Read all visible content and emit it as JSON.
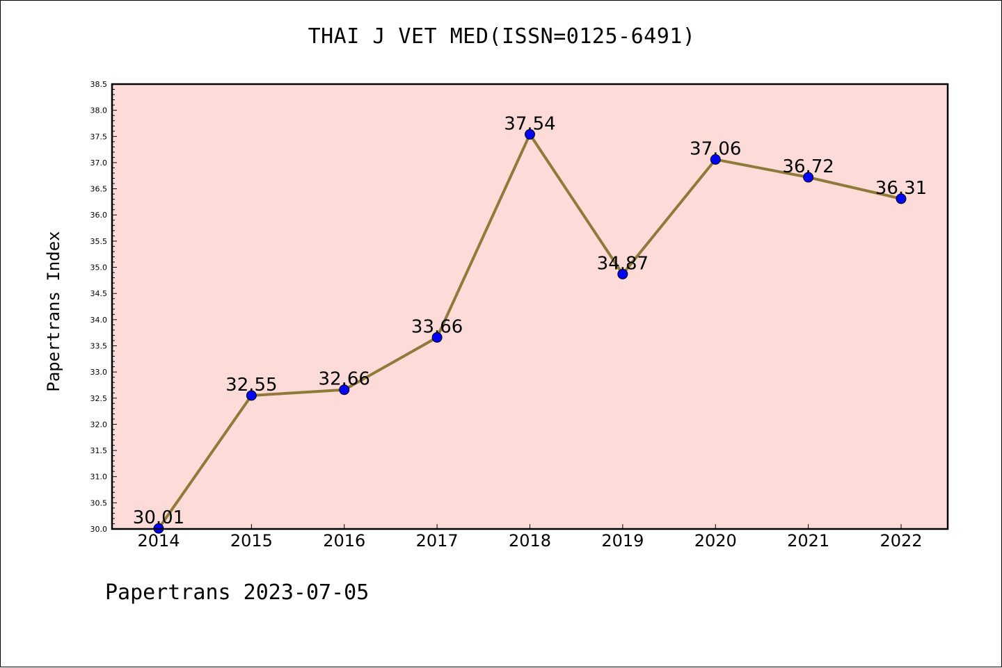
{
  "header": {
    "title": "THAI J VET MED(ISSN=0125-6491)"
  },
  "footer": {
    "text": "Papertrans 2023-07-05"
  },
  "colors": {
    "plot_background": "#fddbd8",
    "line": "#8f7a3a",
    "marker": "#0000ff",
    "axes": "#000000"
  },
  "chart_data": {
    "type": "line",
    "title": "THAI J VET MED(ISSN=0125-6491)",
    "xlabel": "",
    "ylabel": "Papertrans Index",
    "categories": [
      "2014",
      "2015",
      "2016",
      "2017",
      "2018",
      "2019",
      "2020",
      "2021",
      "2022"
    ],
    "series": [
      {
        "values": [
          30.01,
          32.55,
          32.66,
          33.66,
          37.54,
          34.87,
          37.06,
          36.72,
          36.31
        ],
        "data_labels": [
          "30.01",
          "32.55",
          "32.66",
          "33.66",
          "37.54",
          "34.87",
          "37.06",
          "36.72",
          "36.31"
        ]
      }
    ],
    "ylim": [
      30.0,
      38.5
    ],
    "y_ticks": [
      "30.0",
      "30.5",
      "31.0",
      "31.5",
      "32.0",
      "32.5",
      "33.0",
      "33.5",
      "34.0",
      "34.5",
      "35.0",
      "35.5",
      "36.0",
      "36.5",
      "37.0",
      "37.5",
      "38.0",
      "38.5"
    ],
    "grid": false,
    "legend": "none"
  }
}
